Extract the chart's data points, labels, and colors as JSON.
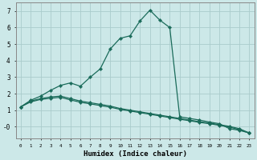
{
  "xlabel": "Humidex (Indice chaleur)",
  "bg_color": "#cce8e8",
  "grid_color": "#aacccc",
  "line_color": "#1a6b5a",
  "spine_color": "#888888",
  "xlim": [
    -0.5,
    23.5
  ],
  "ylim": [
    -0.7,
    7.5
  ],
  "xticks": [
    0,
    1,
    2,
    3,
    4,
    5,
    6,
    7,
    8,
    9,
    10,
    11,
    12,
    13,
    14,
    15,
    16,
    17,
    18,
    19,
    20,
    21,
    22,
    23
  ],
  "yticks": [
    0,
    1,
    2,
    3,
    4,
    5,
    6,
    7
  ],
  "ytick_labels": [
    "-0",
    "1",
    "2",
    "3",
    "4",
    "5",
    "6",
    "7"
  ],
  "line1_x": [
    0,
    1,
    2,
    3,
    4,
    5,
    6,
    7,
    8,
    9,
    10,
    11,
    12,
    13,
    14,
    15,
    16,
    17,
    18,
    19,
    20,
    21,
    22,
    23
  ],
  "line1_y": [
    1.2,
    1.6,
    1.85,
    2.2,
    2.5,
    2.65,
    2.45,
    3.0,
    3.5,
    4.7,
    5.35,
    5.5,
    6.4,
    7.05,
    6.45,
    6.0,
    0.6,
    0.5,
    0.4,
    0.28,
    0.18,
    -0.12,
    -0.22,
    -0.38
  ],
  "line2_x": [
    0,
    1,
    2,
    3,
    4,
    5,
    6,
    7,
    8,
    9,
    10,
    11,
    12,
    13,
    14,
    15,
    16,
    17,
    18,
    19,
    20,
    21,
    22,
    23
  ],
  "line2_y": [
    1.2,
    1.55,
    1.7,
    1.8,
    1.85,
    1.7,
    1.55,
    1.45,
    1.35,
    1.25,
    1.1,
    1.0,
    0.9,
    0.8,
    0.7,
    0.6,
    0.5,
    0.4,
    0.3,
    0.22,
    0.12,
    0.02,
    -0.12,
    -0.38
  ],
  "line3_x": [
    0,
    1,
    2,
    3,
    4,
    5,
    6,
    7,
    8,
    9,
    10,
    11,
    12,
    13,
    14,
    15,
    16,
    17,
    18,
    19,
    20,
    21,
    22,
    23
  ],
  "line3_y": [
    1.2,
    1.5,
    1.65,
    1.72,
    1.78,
    1.62,
    1.48,
    1.38,
    1.28,
    1.18,
    1.05,
    0.95,
    0.85,
    0.75,
    0.65,
    0.55,
    0.45,
    0.36,
    0.26,
    0.18,
    0.08,
    -0.02,
    -0.18,
    -0.38
  ]
}
